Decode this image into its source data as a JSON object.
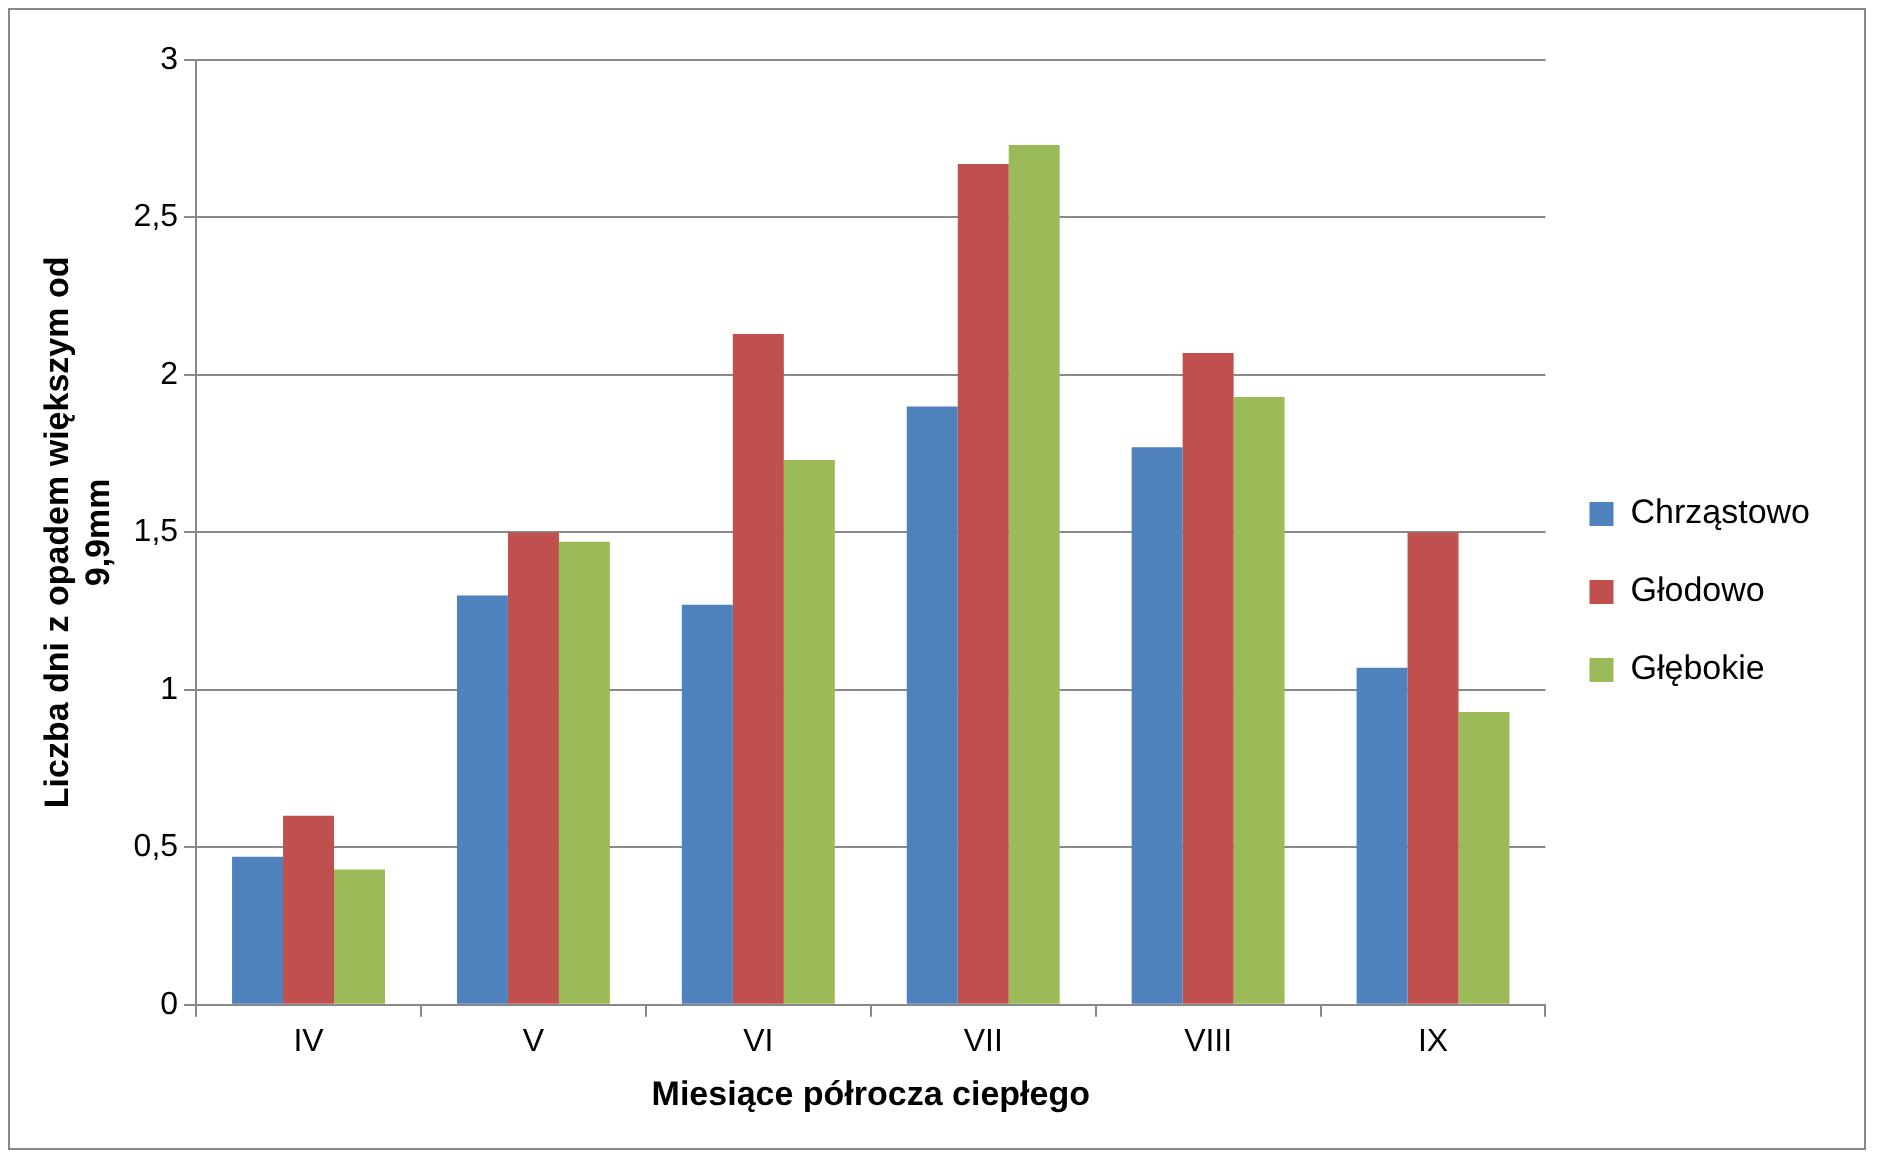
{
  "chart_data": {
    "type": "bar",
    "xlabel": "Miesiące półrocza ciepłego",
    "ylabel": "Liczba dni z opadem większym od 9,9mm",
    "categories": [
      "IV",
      "V",
      "VI",
      "VII",
      "VIII",
      "IX"
    ],
    "series": [
      {
        "name": "Chrząstowo",
        "color": "#4f81bd",
        "values": [
          0.47,
          1.3,
          1.27,
          1.9,
          1.77,
          1.07
        ]
      },
      {
        "name": "Głodowo",
        "color": "#c0504d",
        "values": [
          0.6,
          1.5,
          2.13,
          2.67,
          2.07,
          1.5
        ]
      },
      {
        "name": "Głębokie",
        "color": "#9bbb59",
        "values": [
          0.43,
          1.47,
          1.73,
          2.73,
          1.93,
          0.93
        ]
      }
    ],
    "ylim": [
      0,
      3
    ],
    "yticks": [
      {
        "value": 0,
        "label": "0"
      },
      {
        "value": 0.5,
        "label": "0,5"
      },
      {
        "value": 1,
        "label": "1"
      },
      {
        "value": 1.5,
        "label": "1,5"
      },
      {
        "value": 2,
        "label": "2"
      },
      {
        "value": 2.5,
        "label": "2,5"
      },
      {
        "value": 3,
        "label": "3"
      }
    ],
    "grid": "y",
    "legend": "right"
  }
}
